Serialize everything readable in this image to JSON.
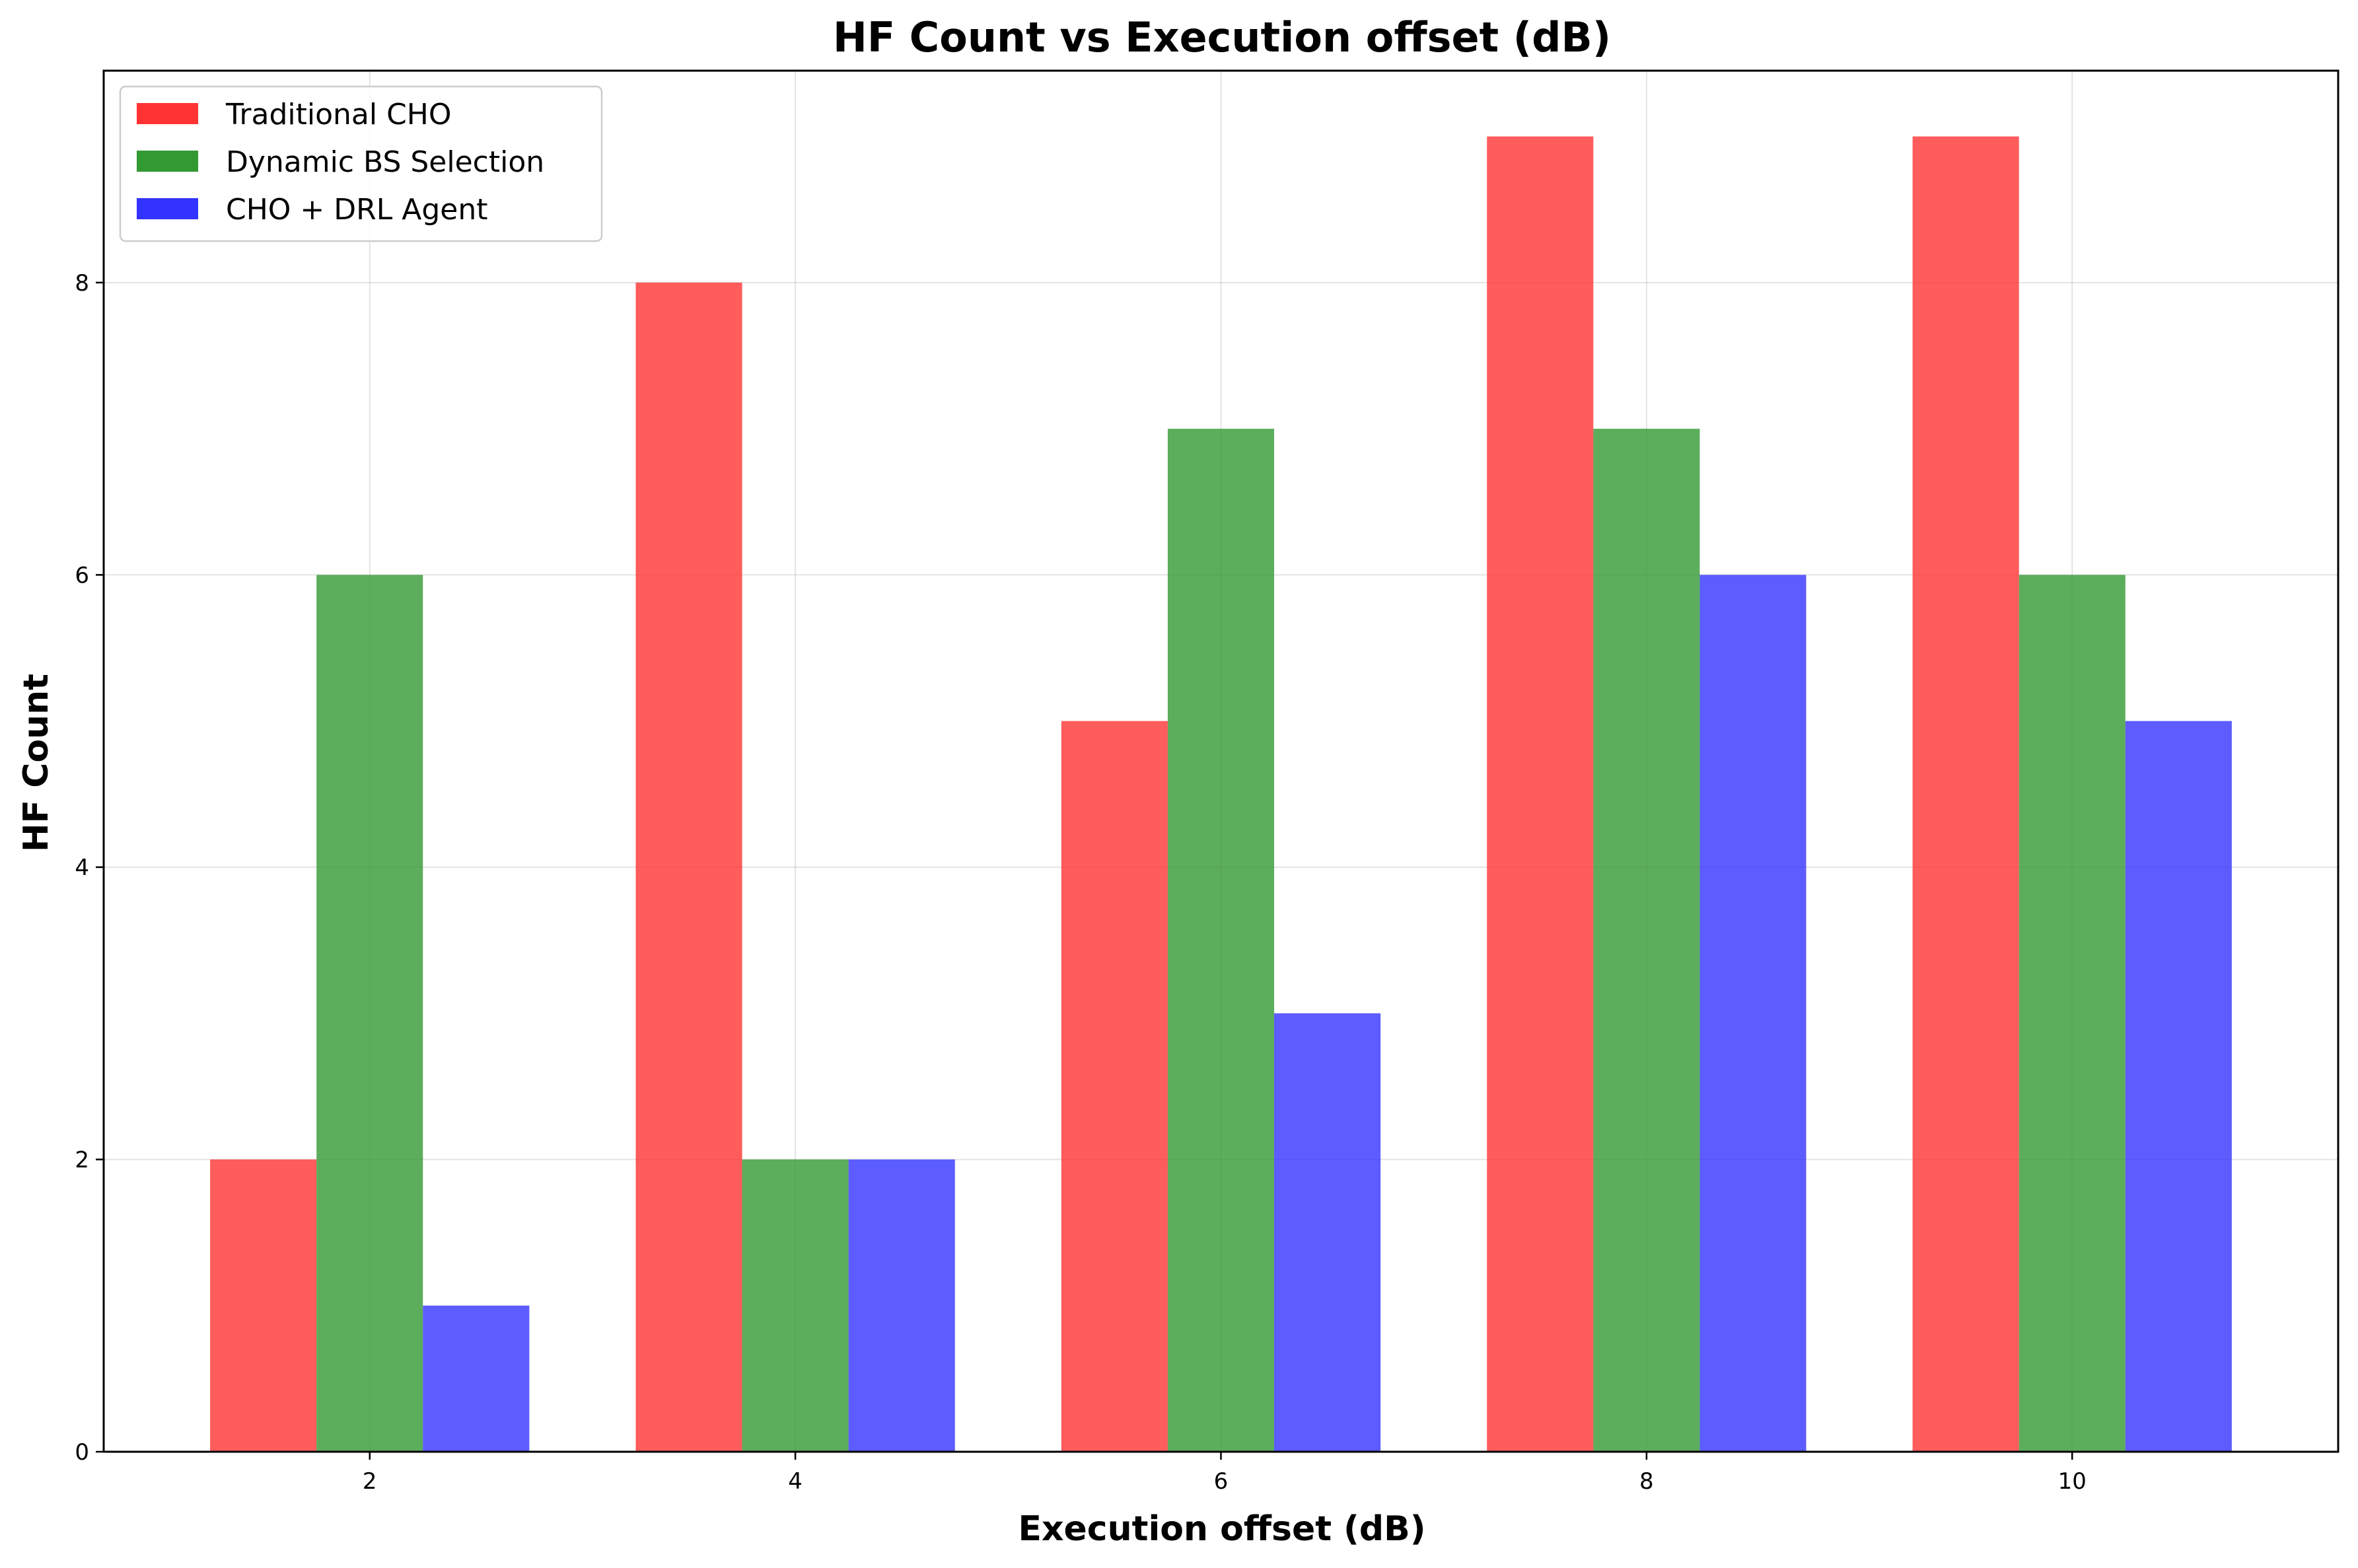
{
  "chart_data": {
    "type": "bar",
    "title": "HF Count vs Execution offset (dB)",
    "xlabel": "Execution offset (dB)",
    "ylabel": "HF Count",
    "categories": [
      "2",
      "4",
      "6",
      "8",
      "10"
    ],
    "x": [
      2,
      4,
      6,
      8,
      10
    ],
    "xlim": [
      0.75,
      11.25
    ],
    "ylim": [
      0,
      9.45
    ],
    "yticks": [
      0,
      2,
      4,
      6,
      8
    ],
    "grid": true,
    "legend_position": "top-left",
    "series": [
      {
        "name": "Traditional CHO",
        "color": "#ff3333",
        "values": [
          2,
          8,
          5,
          9,
          9
        ]
      },
      {
        "name": "Dynamic BS Selection",
        "color": "#339933",
        "values": [
          6,
          2,
          7,
          7,
          6
        ]
      },
      {
        "name": "CHO + DRL Agent",
        "color": "#3333ff",
        "values": [
          1,
          2,
          3,
          6,
          5
        ]
      }
    ]
  }
}
